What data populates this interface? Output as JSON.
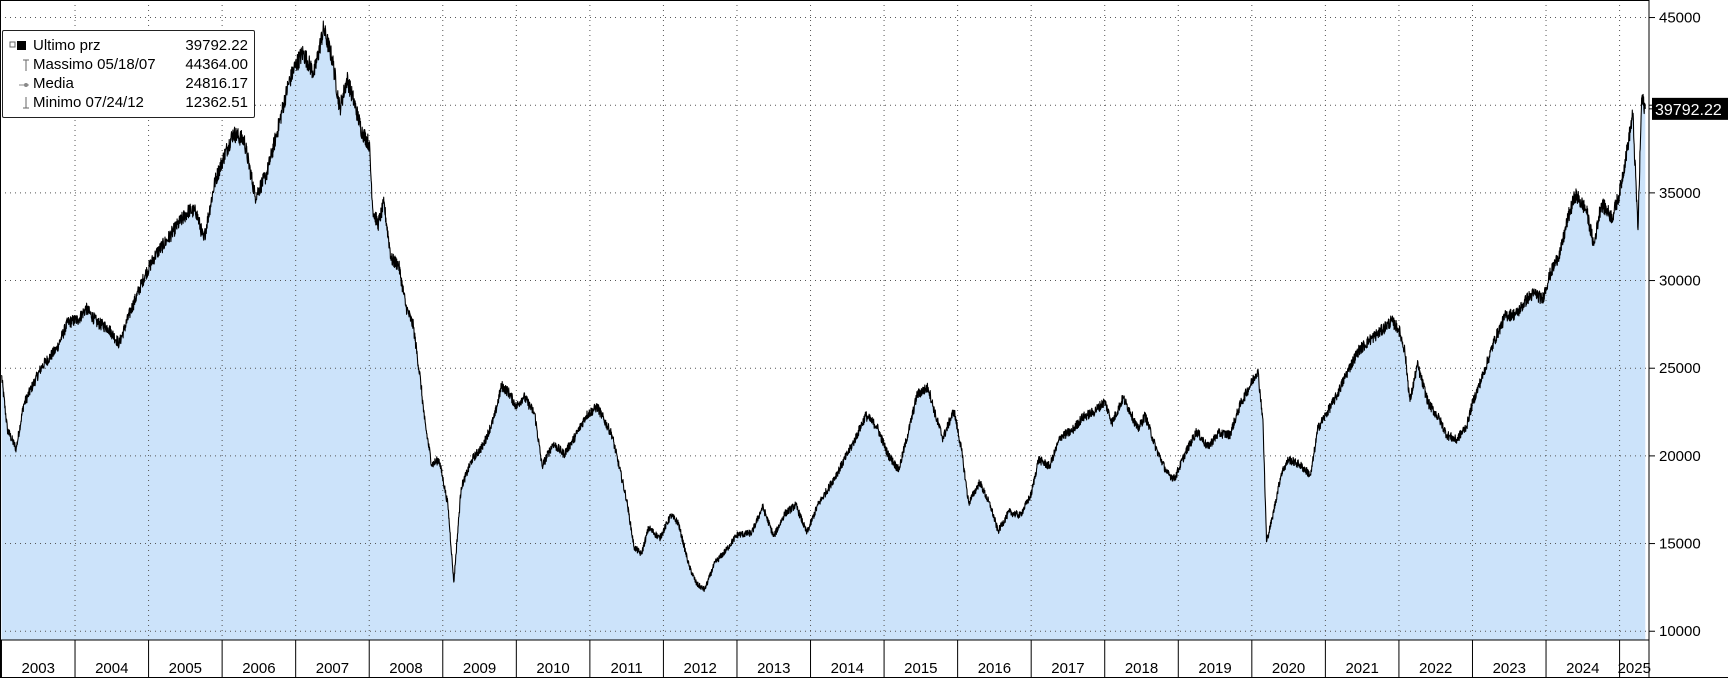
{
  "legend": {
    "items": [
      {
        "label": "Ultimo prz",
        "value": "39792.22",
        "icon": "filled-square-icon"
      },
      {
        "label": "Massimo 05/18/07",
        "value": "44364.00",
        "icon": "max-marker-icon"
      },
      {
        "label": "Media",
        "value": "24816.17",
        "icon": "average-line-icon"
      },
      {
        "label": "Minimo 07/24/12",
        "value": "12362.51",
        "icon": "min-marker-icon"
      }
    ]
  },
  "last_price_tag": "39792.22",
  "colors": {
    "area_fill": "#cce3fa",
    "line": "#000000",
    "grid": "#555555",
    "tag_bg": "#000000",
    "tag_text": "#ffffff"
  },
  "chart_data": {
    "type": "area",
    "title": "",
    "xlabel": "",
    "ylabel": "",
    "ylim": [
      9500,
      46000
    ],
    "y_ticks": [
      10000,
      15000,
      20000,
      25000,
      30000,
      35000,
      40000,
      45000
    ],
    "y_tick_labels": [
      "10000",
      "15000",
      "20000",
      "25000",
      "30000",
      "35000",
      "40000",
      "45000"
    ],
    "x_range": [
      2002.98,
      2025.4
    ],
    "x_ticks": [
      "2003",
      "2004",
      "2005",
      "2006",
      "2007",
      "2008",
      "2009",
      "2010",
      "2011",
      "2012",
      "2013",
      "2014",
      "2015",
      "2016",
      "2017",
      "2018",
      "2019",
      "2020",
      "2021",
      "2022",
      "2023",
      "2024",
      "2025"
    ],
    "grid": true,
    "y_axis_position": "right",
    "legend_position": "top-left",
    "series": [
      {
        "values": [
          [
            2003.0,
            24600
          ],
          [
            2003.08,
            21500
          ],
          [
            2003.2,
            20400
          ],
          [
            2003.3,
            22900
          ],
          [
            2003.4,
            23800
          ],
          [
            2003.55,
            25100
          ],
          [
            2003.75,
            26100
          ],
          [
            2003.9,
            27600
          ],
          [
            2004.05,
            27800
          ],
          [
            2004.15,
            28400
          ],
          [
            2004.3,
            27600
          ],
          [
            2004.45,
            27300
          ],
          [
            2004.6,
            26400
          ],
          [
            2004.75,
            28200
          ],
          [
            2004.95,
            30300
          ],
          [
            2005.1,
            31500
          ],
          [
            2005.25,
            32300
          ],
          [
            2005.4,
            33200
          ],
          [
            2005.55,
            34000
          ],
          [
            2005.65,
            33900
          ],
          [
            2005.75,
            32300
          ],
          [
            2005.9,
            35600
          ],
          [
            2006.0,
            36800
          ],
          [
            2006.15,
            38400
          ],
          [
            2006.3,
            38000
          ],
          [
            2006.45,
            34800
          ],
          [
            2006.6,
            36000
          ],
          [
            2006.75,
            38500
          ],
          [
            2006.9,
            41200
          ],
          [
            2007.0,
            42300
          ],
          [
            2007.1,
            43000
          ],
          [
            2007.25,
            41800
          ],
          [
            2007.38,
            44364
          ],
          [
            2007.5,
            42600
          ],
          [
            2007.6,
            39800
          ],
          [
            2007.7,
            41500
          ],
          [
            2007.8,
            40100
          ],
          [
            2007.9,
            38500
          ],
          [
            2008.0,
            37800
          ],
          [
            2008.05,
            34000
          ],
          [
            2008.12,
            33200
          ],
          [
            2008.2,
            34400
          ],
          [
            2008.3,
            31200
          ],
          [
            2008.4,
            30900
          ],
          [
            2008.5,
            28500
          ],
          [
            2008.6,
            27400
          ],
          [
            2008.7,
            24200
          ],
          [
            2008.75,
            22100
          ],
          [
            2008.85,
            19500
          ],
          [
            2008.95,
            19800
          ],
          [
            2009.07,
            17200
          ],
          [
            2009.15,
            12800
          ],
          [
            2009.25,
            18200
          ],
          [
            2009.4,
            19800
          ],
          [
            2009.55,
            20600
          ],
          [
            2009.7,
            22200
          ],
          [
            2009.8,
            24000
          ],
          [
            2009.9,
            23600
          ],
          [
            2010.0,
            22800
          ],
          [
            2010.1,
            23400
          ],
          [
            2010.25,
            22400
          ],
          [
            2010.35,
            19400
          ],
          [
            2010.5,
            20700
          ],
          [
            2010.65,
            20100
          ],
          [
            2010.8,
            21100
          ],
          [
            2010.95,
            22300
          ],
          [
            2011.1,
            22800
          ],
          [
            2011.3,
            21200
          ],
          [
            2011.5,
            17500
          ],
          [
            2011.6,
            14800
          ],
          [
            2011.7,
            14400
          ],
          [
            2011.8,
            15900
          ],
          [
            2011.95,
            15300
          ],
          [
            2012.1,
            16600
          ],
          [
            2012.2,
            16200
          ],
          [
            2012.35,
            13700
          ],
          [
            2012.45,
            12700
          ],
          [
            2012.56,
            12362
          ],
          [
            2012.7,
            13900
          ],
          [
            2012.85,
            14600
          ],
          [
            2013.0,
            15500
          ],
          [
            2013.2,
            15600
          ],
          [
            2013.35,
            17100
          ],
          [
            2013.5,
            15400
          ],
          [
            2013.65,
            16700
          ],
          [
            2013.8,
            17200
          ],
          [
            2013.95,
            15600
          ],
          [
            2014.1,
            17200
          ],
          [
            2014.25,
            18200
          ],
          [
            2014.4,
            19300
          ],
          [
            2014.6,
            20900
          ],
          [
            2014.75,
            22300
          ],
          [
            2014.9,
            21700
          ],
          [
            2015.05,
            20100
          ],
          [
            2015.2,
            19200
          ],
          [
            2015.35,
            21700
          ],
          [
            2015.45,
            23500
          ],
          [
            2015.6,
            23900
          ],
          [
            2015.7,
            22300
          ],
          [
            2015.8,
            21000
          ],
          [
            2015.95,
            22600
          ],
          [
            2016.05,
            20400
          ],
          [
            2016.15,
            17300
          ],
          [
            2016.3,
            18500
          ],
          [
            2016.45,
            17100
          ],
          [
            2016.55,
            15700
          ],
          [
            2016.7,
            16800
          ],
          [
            2016.85,
            16600
          ],
          [
            2017.0,
            17800
          ],
          [
            2017.1,
            19800
          ],
          [
            2017.25,
            19400
          ],
          [
            2017.4,
            21100
          ],
          [
            2017.55,
            21400
          ],
          [
            2017.7,
            22200
          ],
          [
            2017.85,
            22500
          ],
          [
            2018.0,
            23100
          ],
          [
            2018.1,
            21900
          ],
          [
            2018.25,
            23300
          ],
          [
            2018.35,
            22500
          ],
          [
            2018.45,
            21500
          ],
          [
            2018.55,
            22300
          ],
          [
            2018.7,
            20400
          ],
          [
            2018.85,
            19000
          ],
          [
            2018.95,
            18700
          ],
          [
            2019.1,
            20200
          ],
          [
            2019.25,
            21400
          ],
          [
            2019.4,
            20500
          ],
          [
            2019.55,
            21300
          ],
          [
            2019.7,
            21200
          ],
          [
            2019.85,
            23000
          ],
          [
            2020.0,
            24200
          ],
          [
            2020.08,
            24900
          ],
          [
            2020.15,
            22100
          ],
          [
            2020.2,
            15100
          ],
          [
            2020.28,
            16500
          ],
          [
            2020.4,
            19000
          ],
          [
            2020.5,
            19800
          ],
          [
            2020.65,
            19500
          ],
          [
            2020.8,
            18900
          ],
          [
            2020.9,
            21600
          ],
          [
            2021.0,
            22300
          ],
          [
            2021.15,
            23400
          ],
          [
            2021.3,
            24800
          ],
          [
            2021.45,
            26000
          ],
          [
            2021.6,
            26600
          ],
          [
            2021.75,
            27100
          ],
          [
            2021.9,
            27700
          ],
          [
            2022.0,
            27200
          ],
          [
            2022.08,
            26000
          ],
          [
            2022.15,
            23100
          ],
          [
            2022.25,
            25200
          ],
          [
            2022.4,
            23000
          ],
          [
            2022.55,
            22100
          ],
          [
            2022.65,
            21200
          ],
          [
            2022.78,
            20900
          ],
          [
            2022.92,
            21700
          ],
          [
            2023.0,
            23000
          ],
          [
            2023.15,
            24700
          ],
          [
            2023.3,
            26600
          ],
          [
            2023.45,
            28000
          ],
          [
            2023.6,
            28100
          ],
          [
            2023.75,
            29000
          ],
          [
            2023.85,
            29300
          ],
          [
            2023.95,
            28900
          ],
          [
            2024.05,
            30300
          ],
          [
            2024.2,
            31700
          ],
          [
            2024.3,
            33600
          ],
          [
            2024.4,
            34900
          ],
          [
            2024.55,
            34000
          ],
          [
            2024.65,
            32000
          ],
          [
            2024.75,
            34400
          ],
          [
            2024.9,
            33600
          ],
          [
            2025.0,
            35000
          ],
          [
            2025.1,
            37400
          ],
          [
            2025.18,
            39500
          ],
          [
            2025.25,
            32900
          ],
          [
            2025.3,
            40400
          ],
          [
            2025.35,
            39792
          ]
        ]
      }
    ]
  }
}
